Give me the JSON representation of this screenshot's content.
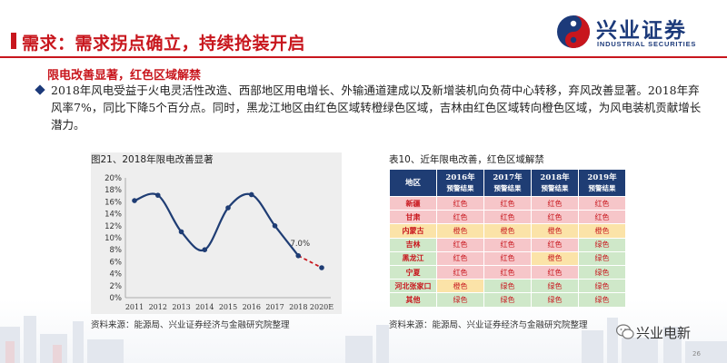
{
  "header": {
    "title": "需求：需求拐点确立，持续抢装开启"
  },
  "logo": {
    "name_cn": "兴业证券",
    "name_en": "INDUSTRIAL SECURITIES"
  },
  "section": {
    "subhead": "限电改善显著，红色区域解禁",
    "paragraph": "2018年风电受益于火电灵活性改造、西部地区用电增长、外输通道建成以及新增装机向负荷中心转移，弃风改善显著。2018年弃风率7%，同比下降5个百分点。同时，黑龙江地区由红色区域转橙绿色区域，吉林由红色区域转向橙色区域，为风电装机贡献增长潜力。"
  },
  "figure": {
    "caption": "图21、2018年限电改善显著",
    "source": "资料来源：能源局、兴业证券经济与金融研究院整理"
  },
  "chart_data": {
    "type": "line",
    "title": "",
    "x": [
      "2011",
      "2012",
      "2013",
      "2014",
      "2015",
      "2016",
      "2017",
      "2018",
      "2020E"
    ],
    "series": [
      {
        "values": [
          16.2,
          17.1,
          11.0,
          8.0,
          15.0,
          17.2,
          12.0,
          7.0,
          5.0
        ]
      }
    ],
    "forecast_from_index": 7,
    "annotations": [
      {
        "x": "2018",
        "label": "7.0%"
      }
    ],
    "yticks": [
      "0%",
      "2%",
      "4%",
      "6%",
      "8%",
      "10%",
      "12%",
      "14%",
      "16%",
      "18%",
      "20%"
    ],
    "ylim": [
      0,
      20
    ],
    "grid": false,
    "line_color": "#1f3d74",
    "forecast_color": "#c8161d"
  },
  "table": {
    "caption": "表10、近年限电改善，红色区域解禁",
    "source": "资料来源：能源局、兴业证券经济与金融研究院整理",
    "corner_header": "地区",
    "headers": [
      {
        "year": "2016年",
        "sub": "预警结果"
      },
      {
        "year": "2017年",
        "sub": "预警结果"
      },
      {
        "year": "2018年",
        "sub": "预警结果"
      },
      {
        "year": "2019年",
        "sub": "预警结果"
      }
    ],
    "rows": [
      {
        "region": "新疆",
        "region_color": "red",
        "cells": [
          {
            "t": "红色",
            "c": "red"
          },
          {
            "t": "红色",
            "c": "red"
          },
          {
            "t": "红色",
            "c": "red"
          },
          {
            "t": "红色",
            "c": "red"
          }
        ]
      },
      {
        "region": "甘肃",
        "region_color": "red",
        "cells": [
          {
            "t": "红色",
            "c": "red"
          },
          {
            "t": "红色",
            "c": "red"
          },
          {
            "t": "红色",
            "c": "red"
          },
          {
            "t": "红色",
            "c": "red"
          }
        ]
      },
      {
        "region": "内蒙古",
        "region_color": "orange",
        "cells": [
          {
            "t": "橙色",
            "c": "orange"
          },
          {
            "t": "橙色",
            "c": "orange"
          },
          {
            "t": "橙色",
            "c": "orange"
          },
          {
            "t": "橙色",
            "c": "orange"
          }
        ]
      },
      {
        "region": "吉林",
        "region_color": "green",
        "cells": [
          {
            "t": "红色",
            "c": "red"
          },
          {
            "t": "红色",
            "c": "red"
          },
          {
            "t": "红色",
            "c": "red"
          },
          {
            "t": "绿色",
            "c": "green"
          }
        ]
      },
      {
        "region": "黑龙江",
        "region_color": "green",
        "cells": [
          {
            "t": "红色",
            "c": "red"
          },
          {
            "t": "红色",
            "c": "red"
          },
          {
            "t": "橙色",
            "c": "orange"
          },
          {
            "t": "绿色",
            "c": "green"
          }
        ]
      },
      {
        "region": "宁夏",
        "region_color": "green",
        "cells": [
          {
            "t": "红色",
            "c": "red"
          },
          {
            "t": "红色",
            "c": "red"
          },
          {
            "t": "红色",
            "c": "red"
          },
          {
            "t": "绿色",
            "c": "green"
          }
        ]
      },
      {
        "region": "河北张家口",
        "region_color": "green",
        "cells": [
          {
            "t": "橙色",
            "c": "orange"
          },
          {
            "t": "绿色",
            "c": "green"
          },
          {
            "t": "绿色",
            "c": "green"
          },
          {
            "t": "绿色",
            "c": "green"
          }
        ]
      },
      {
        "region": "其他",
        "region_color": "green",
        "cells": [
          {
            "t": "绿色",
            "c": "green"
          },
          {
            "t": "绿色",
            "c": "green"
          },
          {
            "t": "绿色",
            "c": "green"
          },
          {
            "t": "绿色",
            "c": "green"
          }
        ]
      }
    ]
  },
  "footer": {
    "wechat_label": "兴业电新",
    "page_number": "26"
  }
}
